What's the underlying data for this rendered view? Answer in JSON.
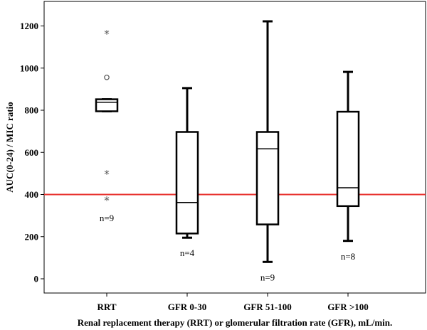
{
  "chart_data": {
    "type": "boxplot",
    "xlabel": "Renal replacement therapy (RRT) or glomerular filtration rate (GFR), mL/min.",
    "ylabel": "AUC(0-24) / MIC ratio",
    "ylim": [
      -40,
      1300
    ],
    "yticks": [
      0,
      200,
      400,
      600,
      800,
      1000,
      1200
    ],
    "grid": false,
    "reference_line": {
      "y": 400,
      "color": "#e8322f"
    },
    "categories": [
      "RRT",
      "GFR 0-30",
      "GFR 51-100",
      "GFR >100"
    ],
    "boxes": [
      {
        "category": "RRT",
        "whisker_low": 795,
        "q1": 795,
        "median": 838,
        "q3": 852,
        "whisker_high": 852,
        "n_label": "n=9",
        "n_label_y": 290,
        "outliers": [
          {
            "y": 956,
            "marker": "circle"
          }
        ],
        "extremes": [
          {
            "y": 1165,
            "marker": "star"
          },
          {
            "y": 500,
            "marker": "star"
          },
          {
            "y": 375,
            "marker": "star"
          }
        ]
      },
      {
        "category": "GFR 0-30",
        "whisker_low": 195,
        "q1": 215,
        "median": 362,
        "q3": 697,
        "whisker_high": 905,
        "n_label": "n=4",
        "n_label_y": 125,
        "outliers": [],
        "extremes": []
      },
      {
        "category": "GFR 51-100",
        "whisker_low": 80,
        "q1": 258,
        "median": 617,
        "q3": 697,
        "whisker_high": 1222,
        "n_label": "n=9",
        "n_label_y": 8,
        "outliers": [],
        "extremes": []
      },
      {
        "category": "GFR >100",
        "whisker_low": 180,
        "q1": 345,
        "median": 432,
        "q3": 793,
        "whisker_high": 982,
        "n_label": "n=8",
        "n_label_y": 108,
        "outliers": [],
        "extremes": []
      }
    ]
  }
}
